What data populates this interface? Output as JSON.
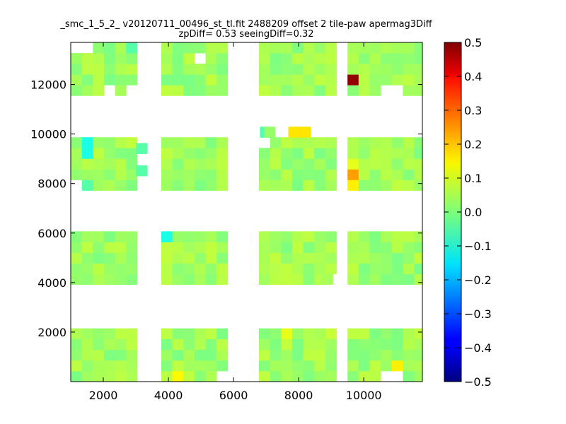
{
  "chart_data": {
    "type": "heatmap",
    "title_line1": "_smc_1_5_2_ v20120711_00496_st_tl.fit 2488209 offset 2 tile-paw apermag3Diff",
    "title_line2": "zpDiff= 0.53 seeingDiff=0.32",
    "xlabel": "",
    "ylabel": "",
    "xlim": [
      1000,
      11800
    ],
    "ylim": [
      0,
      13700
    ],
    "xticks": [
      2000,
      4000,
      6000,
      8000,
      10000
    ],
    "yticks": [
      2000,
      4000,
      6000,
      8000,
      10000,
      12000
    ],
    "colorbar": {
      "colormap": "jet",
      "vmin": -0.5,
      "vmax": 0.5,
      "ticks": [
        0.5,
        0.4,
        0.3,
        0.2,
        0.1,
        0.0,
        -0.1,
        -0.2,
        -0.3,
        -0.4,
        -0.5
      ],
      "tick_labels": [
        "0.5",
        "0.4",
        "0.3",
        "0.2",
        "0.1",
        "0.0",
        "−0.1",
        "−0.2",
        "−0.3",
        "−0.4",
        "−0.5"
      ]
    },
    "cell_size": [
      340,
      430
    ],
    "columns": [
      {
        "x0": 1000,
        "x1": 2900,
        "name": "col-1"
      },
      {
        "x0": 3780,
        "x1": 5920,
        "name": "col-2"
      },
      {
        "x0": 6780,
        "x1": 9120,
        "name": "col-3"
      },
      {
        "x0": 9500,
        "x1": 11800,
        "name": "col-4"
      }
    ],
    "row_bands": [
      {
        "y0": 0,
        "y1": 2150,
        "name": "band-1"
      },
      {
        "y0": 3920,
        "y1": 6000,
        "name": "band-2"
      },
      {
        "y0": 7720,
        "y1": 9840,
        "name": "band-3"
      },
      {
        "y0": 11550,
        "y1": 13700,
        "name": "band-4"
      }
    ],
    "typical_value": 0.03,
    "outlier_cells": [
      {
        "x": 9720,
        "y": 12300,
        "value": 0.48
      },
      {
        "x": 9640,
        "y": 8420,
        "value": 0.22
      },
      {
        "x": 9640,
        "y": 7960,
        "value": 0.14
      },
      {
        "x": 9640,
        "y": 8860,
        "value": 0.1
      },
      {
        "x": 7850,
        "y": 10080,
        "value": 0.15
      },
      {
        "x": 8200,
        "y": 10080,
        "value": 0.15
      },
      {
        "x": 6980,
        "y": 10080,
        "value": -0.05
      },
      {
        "x": 1450,
        "y": 9420,
        "value": -0.1
      },
      {
        "x": 3180,
        "y": 9420,
        "value": -0.04
      },
      {
        "x": 3180,
        "y": 8520,
        "value": -0.04
      },
      {
        "x": 4050,
        "y": 5800,
        "value": -0.1
      },
      {
        "x": 4250,
        "y": 250,
        "value": 0.13
      },
      {
        "x": 10980,
        "y": 650,
        "value": 0.14
      },
      {
        "x": 7680,
        "y": 1950,
        "value": 0.1
      },
      {
        "x": 9120,
        "y": 1950,
        "value": 0.07
      },
      {
        "x": 1520,
        "y": 7870,
        "value": -0.04
      },
      {
        "x": 2860,
        "y": 13480,
        "value": -0.04
      }
    ],
    "missing_cells": [
      {
        "x": 1200,
        "y": 13480
      },
      {
        "x": 1540,
        "y": 13480
      },
      {
        "x": 2180,
        "y": 11770
      },
      {
        "x": 2880,
        "y": 11770
      },
      {
        "x": 5020,
        "y": 13050
      },
      {
        "x": 10880,
        "y": 11770
      },
      {
        "x": 10880,
        "y": 210
      },
      {
        "x": 9060,
        "y": 4140
      },
      {
        "x": 1200,
        "y": 7870
      },
      {
        "x": 6950,
        "y": 9640
      },
      {
        "x": 5760,
        "y": 210
      },
      {
        "x": 3100,
        "y": 11770
      }
    ],
    "extra_cells": [
      {
        "x": 7100,
        "y": 10080,
        "value": 0.02
      },
      {
        "x": 8880,
        "y": 4140,
        "value": 0.04
      }
    ]
  }
}
